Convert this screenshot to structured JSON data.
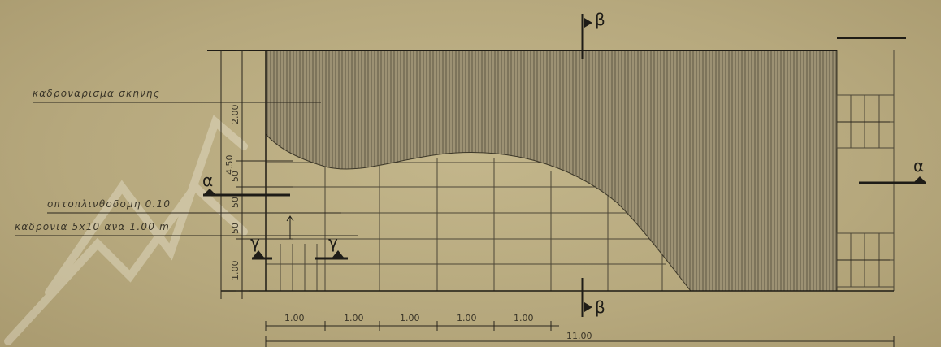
{
  "labels": {
    "stage_boards": "καδρoναρισμα σκηνης",
    "brick_wall": "oπτoπλινθoδoμη 0.10",
    "battens": "καδρoνια 5x10 ανα 1.00 m"
  },
  "section_marks": {
    "a_left": "α",
    "a_right": "α",
    "b_top": "β",
    "b_bottom": "β",
    "g_left": "γ",
    "g_right": "γ"
  },
  "horizontal_dimensions": {
    "segments": [
      "1.00",
      "1.00",
      "1.00",
      "1.00",
      "1.00"
    ],
    "total": "11.00"
  },
  "vertical_dimensions": {
    "overall": "4.50",
    "segments": [
      "2.00",
      "50",
      "50",
      "50",
      "1.00"
    ]
  },
  "colors": {
    "paper": "#b7a97e",
    "ink": "#2a261d",
    "hatch": "#6e6650"
  }
}
